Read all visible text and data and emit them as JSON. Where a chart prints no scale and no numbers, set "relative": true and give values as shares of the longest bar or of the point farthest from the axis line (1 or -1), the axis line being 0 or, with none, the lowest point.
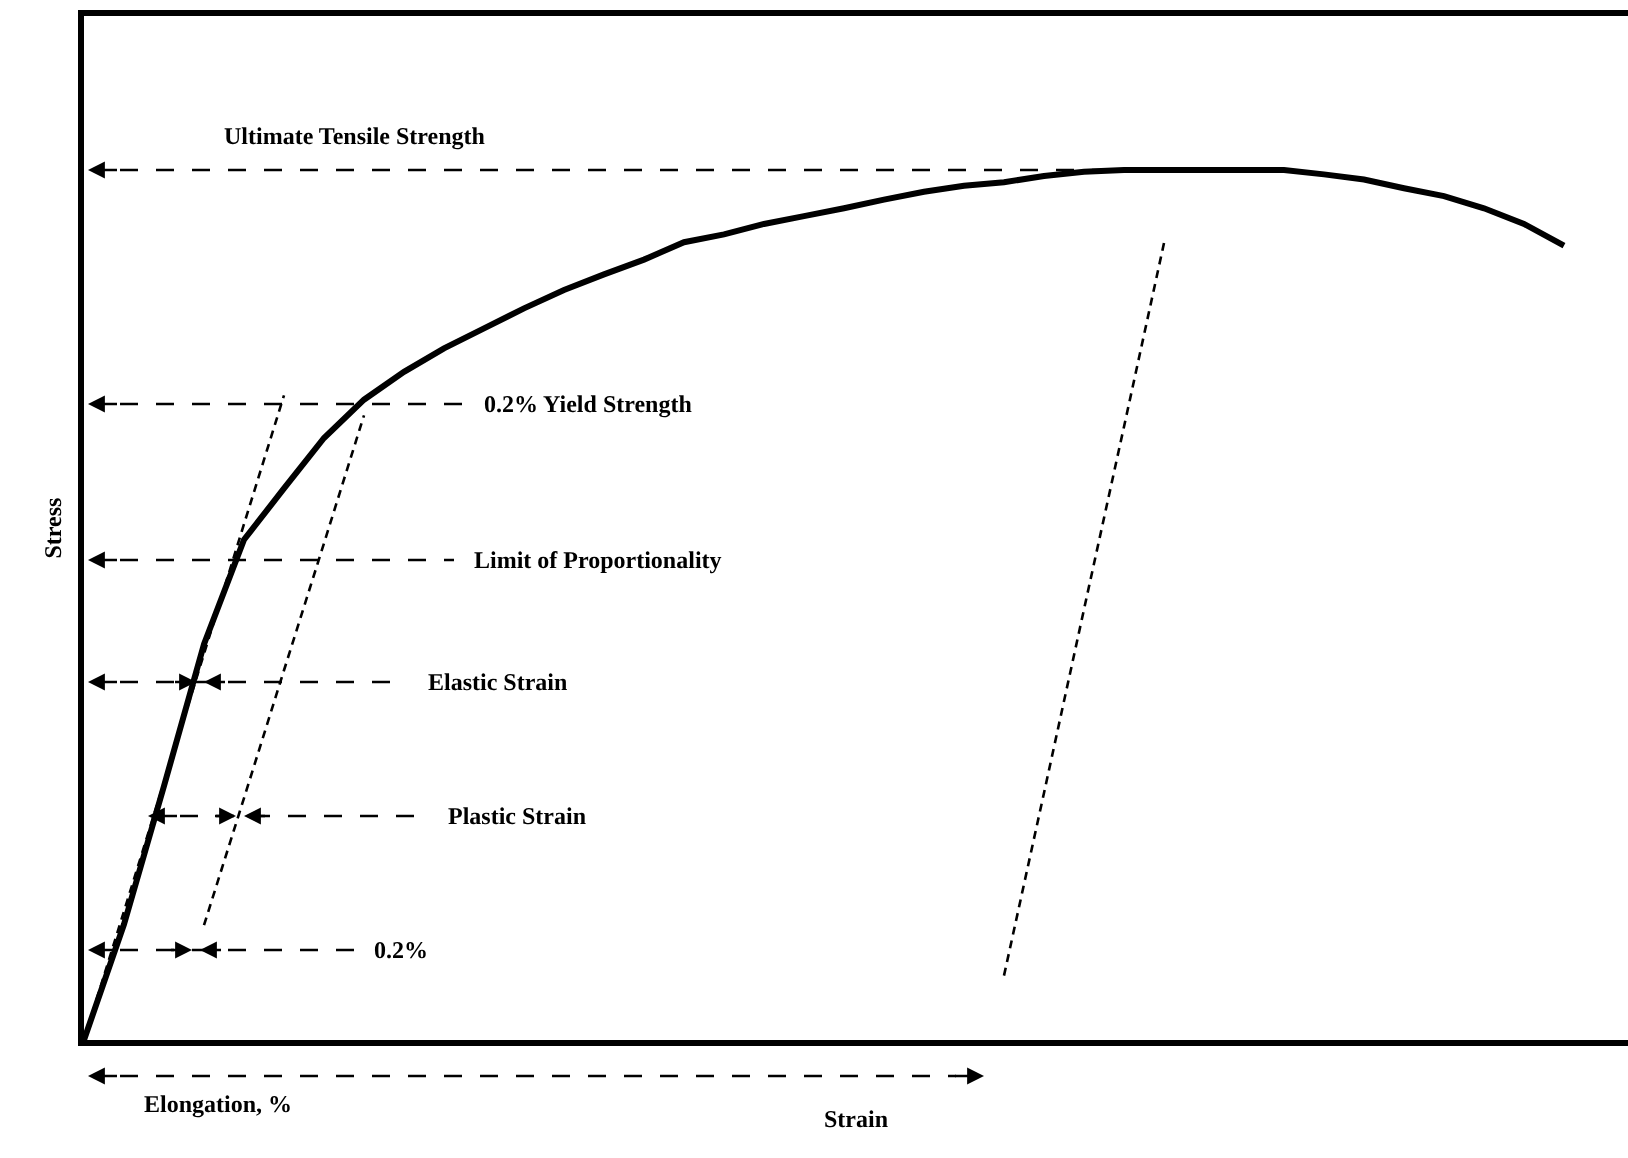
{
  "chart_data": {
    "type": "line",
    "relative": true,
    "xlabel": "Strain",
    "ylabel": "Stress",
    "legend": false,
    "tick_labels": false,
    "marker": "none",
    "categories": [
      null,
      null,
      null,
      null,
      null,
      null,
      null,
      null,
      null,
      null,
      null,
      null,
      null,
      null,
      null,
      null,
      null,
      null,
      null,
      null,
      null,
      null,
      null,
      null,
      null,
      null,
      null,
      null,
      null,
      null,
      null,
      null,
      null,
      null,
      null,
      null,
      null,
      null
    ],
    "series": [
      {
        "color": "#000000",
        "line_style": "solid",
        "values": [
          0,
          0.133,
          0.292,
          0.455,
          0.575,
          0.634,
          0.692,
          0.736,
          0.768,
          0.795,
          0.818,
          0.841,
          0.862,
          0.88,
          0.897,
          0.917,
          0.926,
          0.938,
          0.947,
          0.956,
          0.966,
          0.975,
          0.982,
          0.986,
          0.993,
          0.998,
          1,
          1,
          1,
          1,
          1,
          0.995,
          0.989,
          0.979,
          0.97,
          0.956,
          0.938,
          0.913
        ]
      },
      {
        "color": "#000000",
        "line_style": "dashed",
        "values": [
          0,
          0.148,
          0.296,
          0.444,
          0.593,
          0.741,
          null,
          null,
          null,
          null,
          null,
          null,
          null,
          null,
          null,
          null,
          null,
          null,
          null,
          null,
          null,
          null,
          null,
          null,
          null,
          null,
          null,
          null,
          null,
          null,
          null,
          null,
          null,
          null,
          null,
          null,
          null,
          null
        ]
      },
      {
        "color": "#000000",
        "line_style": "dashed",
        "values": [
          null,
          null,
          null,
          0.132,
          0.278,
          0.425,
          0.571,
          0.718,
          null,
          null,
          null,
          null,
          null,
          null,
          null,
          null,
          null,
          null,
          null,
          null,
          null,
          null,
          null,
          null,
          null,
          null,
          null,
          null,
          null,
          null,
          null,
          null,
          null,
          null,
          null,
          null,
          null,
          null
        ]
      },
      {
        "color": "#000000",
        "line_style": "dashed",
        "values": [
          null,
          null,
          null,
          null,
          null,
          null,
          null,
          null,
          null,
          null,
          null,
          null,
          null,
          null,
          null,
          null,
          null,
          null,
          null,
          null,
          null,
          null,
          null,
          0.074,
          0.284,
          0.495,
          0.705,
          0.916,
          null,
          null,
          null,
          null,
          null,
          null,
          null,
          null,
          null,
          null
        ]
      }
    ],
    "annotations": [
      "Ultimate Tensile Strength",
      "0.2% Yield Strength",
      "Limit of Proportionality",
      "Elastic Strain",
      "Plastic Strain",
      "0.2%",
      "Elongation, %"
    ]
  }
}
